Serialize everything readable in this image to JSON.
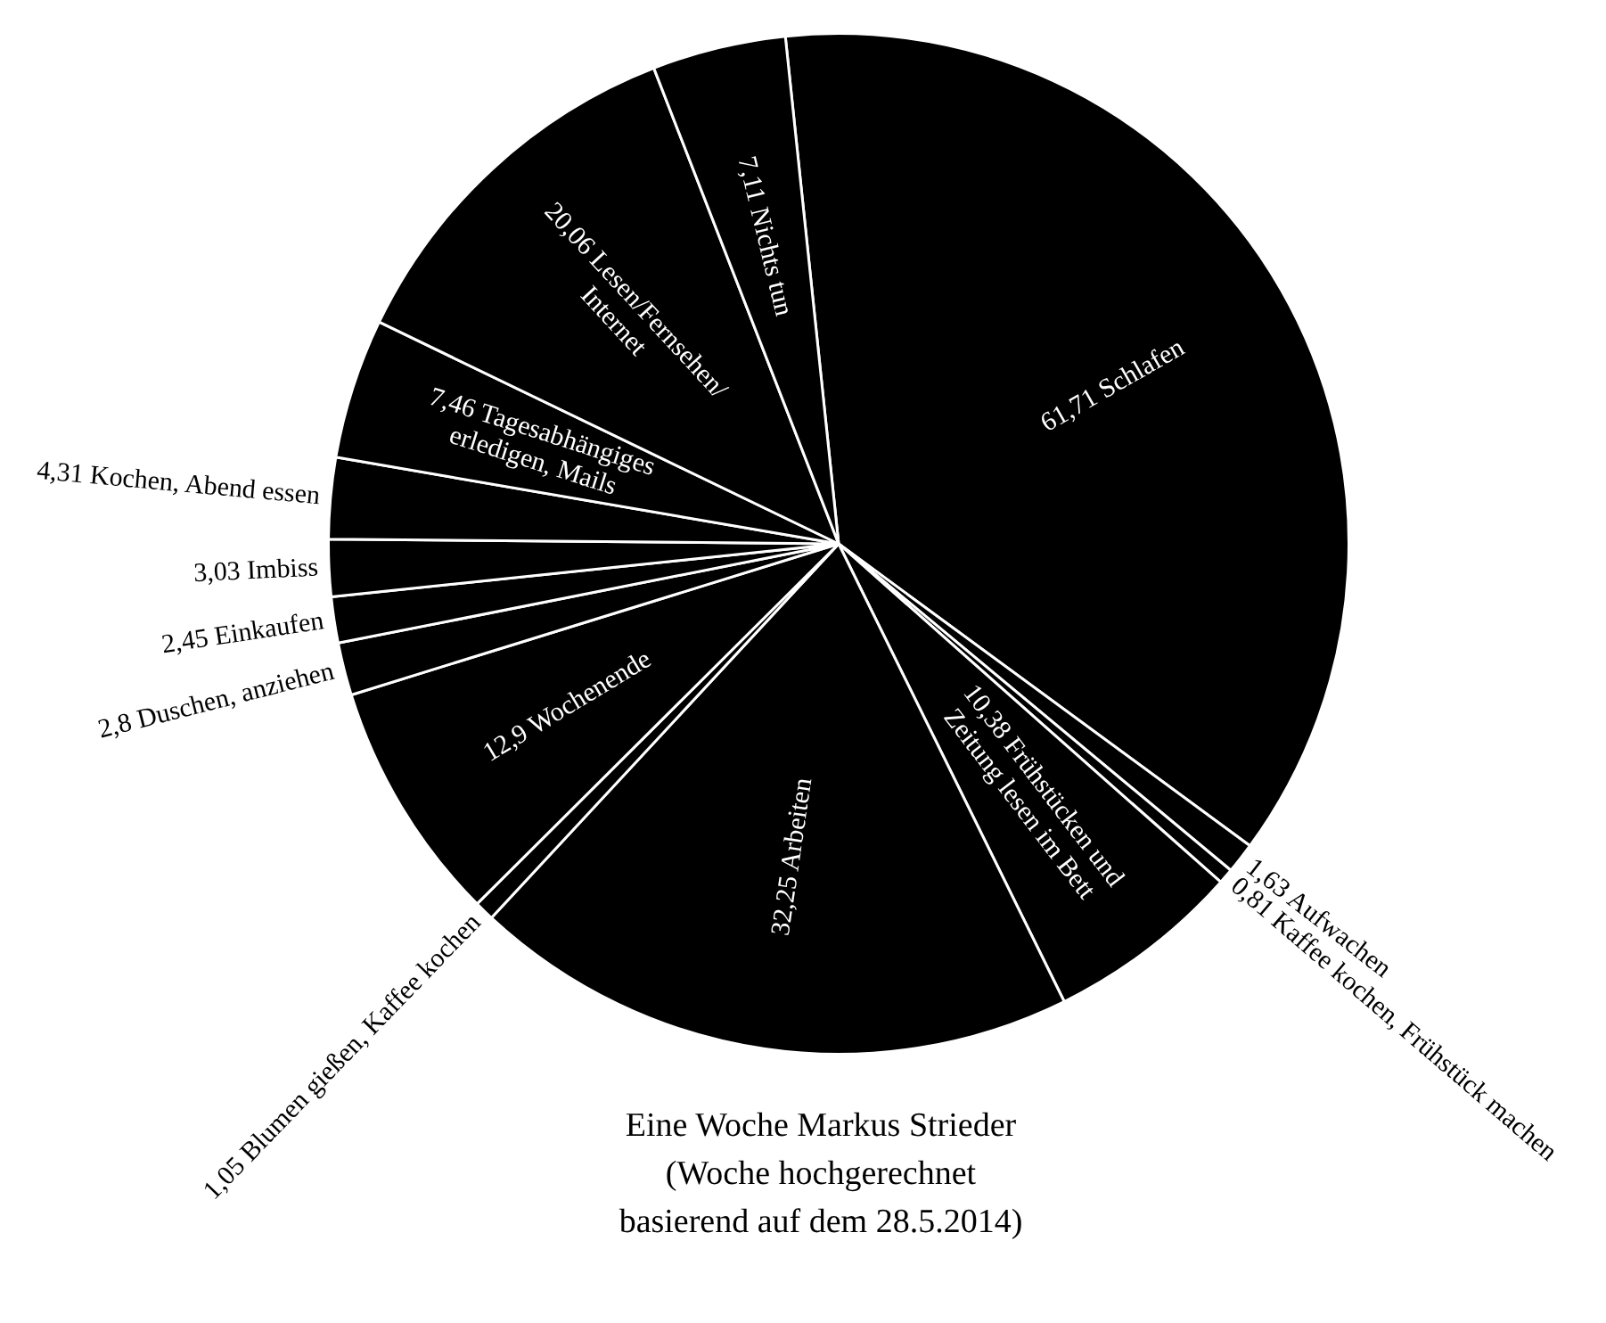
{
  "chart_data": {
    "type": "pie",
    "title": "Eine Woche Markus Strieder\n(Woche hochgerechnet\nbasierend auf dem 28.5.2014)",
    "categories": [
      "Schlafen",
      "Aufwachen",
      "Kaffee kochen, Frühstück machen",
      "Frühstücken und Zeitung lesen im Bett",
      "Arbeiten",
      "Blumen gießen, Kaffee kochen",
      "Wochenende",
      "Duschen, anziehen",
      "Einkaufen",
      "Imbiss",
      "Kochen, Abend essen",
      "Tagesabhängiges erledigen, Mails",
      "Lesen/Fernsehen/ Internet",
      "Nichts tun"
    ],
    "values": [
      61.71,
      1.63,
      0.81,
      10.38,
      32.25,
      1.05,
      12.9,
      2.8,
      2.45,
      3.03,
      4.31,
      7.46,
      20.06,
      7.11
    ],
    "colors": [
      "#000000",
      "#000000",
      "#000000",
      "#000000",
      "#000000",
      "#000000",
      "#000000",
      "#000000",
      "#000000",
      "#000000",
      "#000000",
      "#000000",
      "#000000",
      "#000000"
    ],
    "value_labels": [
      "61,71",
      "1,63",
      "0,81",
      "10,38",
      "32,25",
      "1,05",
      "12,9",
      "2,8",
      "2,45",
      "3,03",
      "4,31",
      "7,46",
      "20,06",
      "7,11"
    ]
  }
}
